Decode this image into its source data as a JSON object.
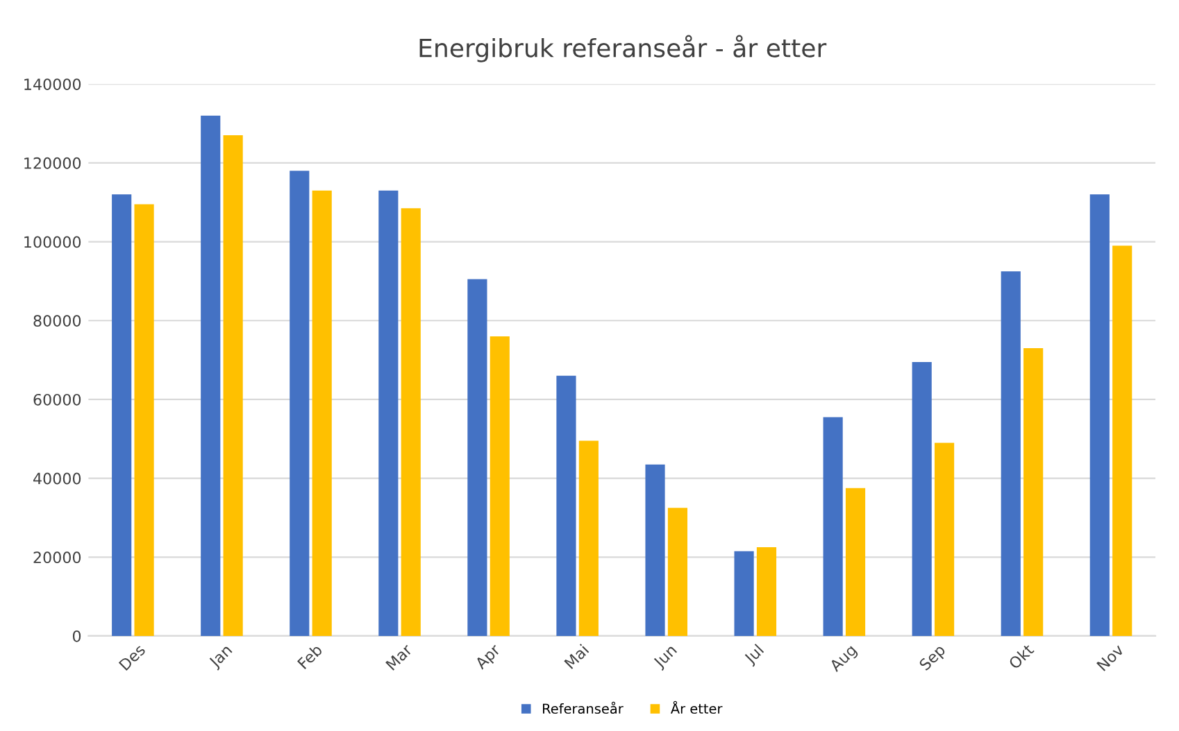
{
  "chart_data": {
    "type": "bar",
    "title": "Energibruk referanseår - år etter",
    "categories": [
      "Des",
      "Jan",
      "Feb",
      "Mar",
      "Apr",
      "Mai",
      "Jun",
      "Jul",
      "Aug",
      "Sep",
      "Okt",
      "Nov"
    ],
    "series": [
      {
        "name": "Referanseår",
        "color": "#4472c4",
        "values": [
          112000,
          132000,
          118000,
          113000,
          90500,
          66000,
          43500,
          21500,
          55500,
          69500,
          92500,
          112000
        ]
      },
      {
        "name": "År etter",
        "color": "#ffc000",
        "values": [
          109500,
          127000,
          113000,
          108500,
          76000,
          49500,
          32500,
          22500,
          37500,
          49000,
          73000,
          99000
        ]
      }
    ],
    "ylim": [
      0,
      140000
    ],
    "yticks": [
      0,
      20000,
      40000,
      60000,
      80000,
      100000,
      120000,
      140000
    ],
    "grid": "y",
    "legend": "bottom"
  }
}
